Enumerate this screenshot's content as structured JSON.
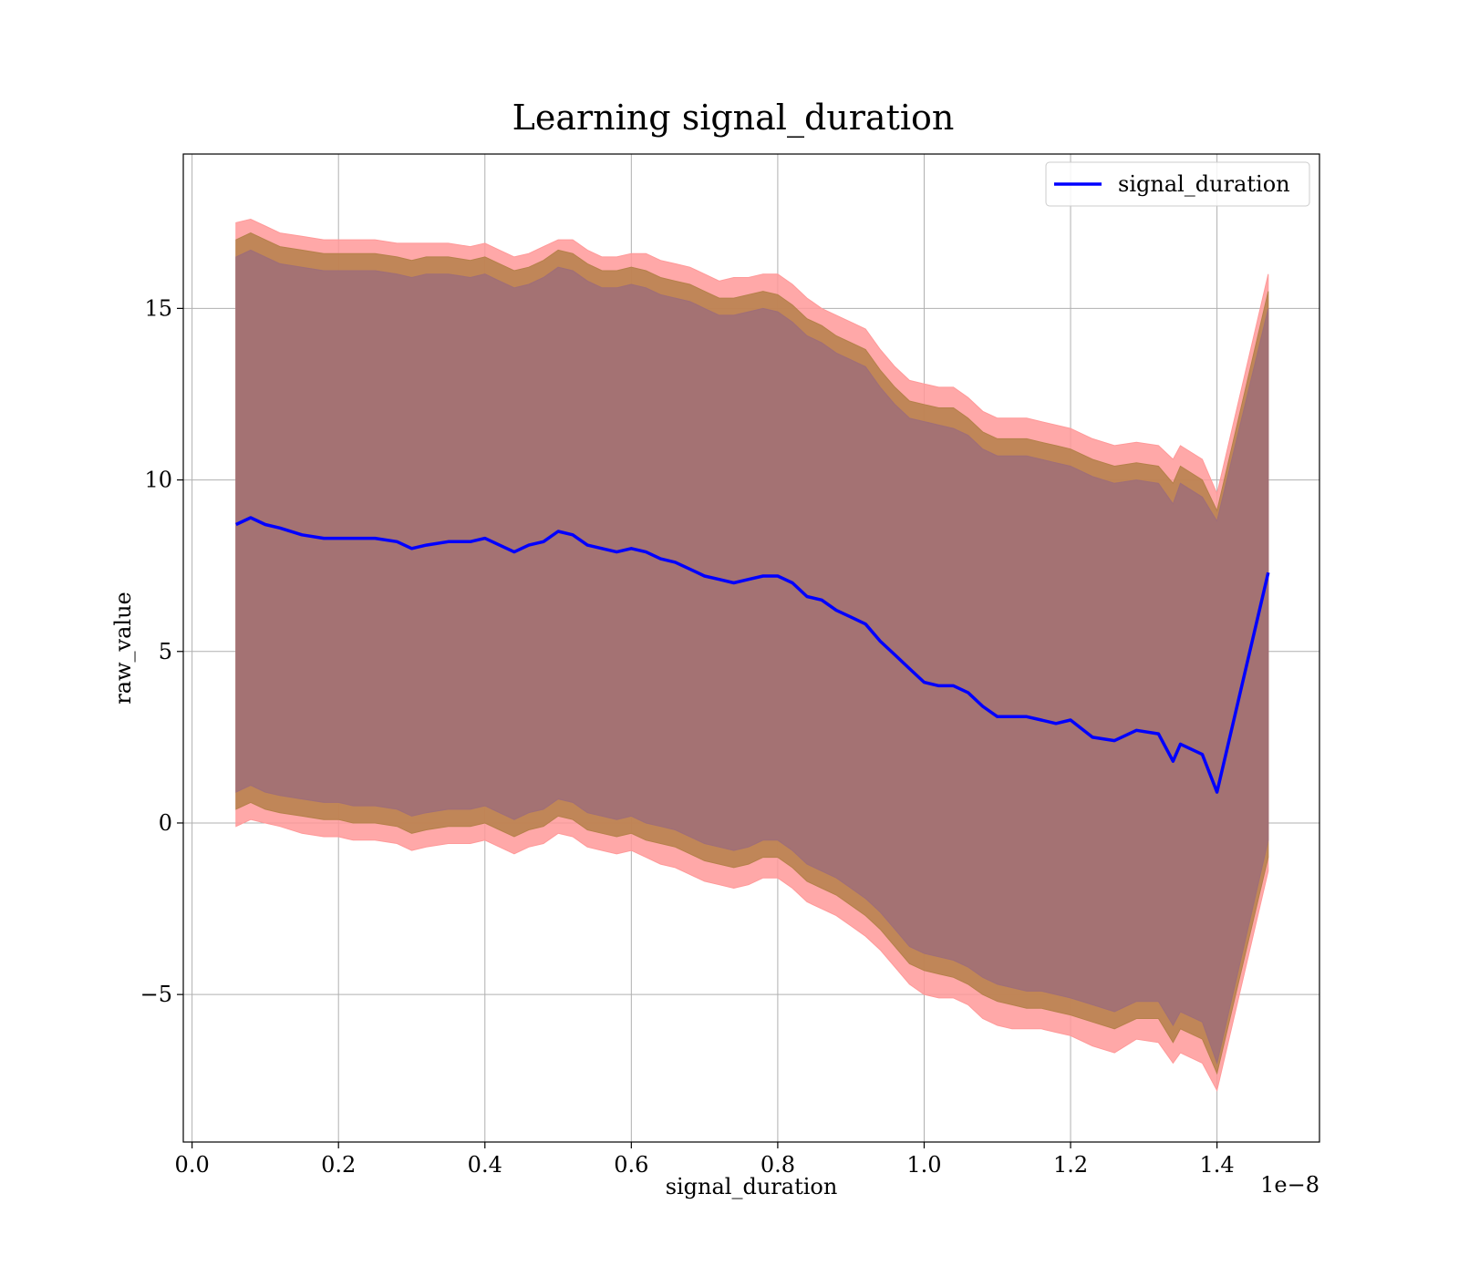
{
  "chart_data": {
    "type": "area",
    "title": "Learning signal_duration",
    "xlabel": "signal_duration",
    "ylabel": "raw_value",
    "x_offset_label": "1e−8",
    "xlim": [
      -0.012,
      1.54
    ],
    "ylim": [
      -9.3,
      19.5
    ],
    "x_ticks": [
      0.0,
      0.2,
      0.4,
      0.6,
      0.8,
      1.0,
      1.2,
      1.4
    ],
    "x_tick_labels": [
      "0.0",
      "0.2",
      "0.4",
      "0.6",
      "0.8",
      "1.0",
      "1.2",
      "1.4"
    ],
    "y_ticks": [
      -5,
      0,
      5,
      10,
      15
    ],
    "y_tick_labels": [
      "−5",
      "0",
      "5",
      "10",
      "15"
    ],
    "grid": true,
    "legend_position": "top-right",
    "series": [
      {
        "name": "signal_duration",
        "color": "#0000ff",
        "x": [
          0.06,
          0.08,
          0.1,
          0.12,
          0.15,
          0.18,
          0.2,
          0.22,
          0.25,
          0.28,
          0.3,
          0.32,
          0.35,
          0.38,
          0.4,
          0.42,
          0.44,
          0.46,
          0.48,
          0.5,
          0.52,
          0.54,
          0.56,
          0.58,
          0.6,
          0.62,
          0.64,
          0.66,
          0.68,
          0.7,
          0.72,
          0.74,
          0.76,
          0.78,
          0.8,
          0.82,
          0.84,
          0.86,
          0.88,
          0.9,
          0.92,
          0.94,
          0.96,
          0.98,
          1.0,
          1.02,
          1.04,
          1.06,
          1.08,
          1.1,
          1.12,
          1.14,
          1.16,
          1.18,
          1.2,
          1.23,
          1.26,
          1.29,
          1.32,
          1.34,
          1.35,
          1.38,
          1.4,
          1.47
        ],
        "values": [
          8.7,
          8.9,
          8.7,
          8.6,
          8.4,
          8.3,
          8.3,
          8.3,
          8.3,
          8.2,
          8.0,
          8.1,
          8.2,
          8.2,
          8.3,
          8.1,
          7.9,
          8.1,
          8.2,
          8.5,
          8.4,
          8.1,
          8.0,
          7.9,
          8.0,
          7.9,
          7.7,
          7.6,
          7.4,
          7.2,
          7.1,
          7.0,
          7.1,
          7.2,
          7.2,
          7.0,
          6.6,
          6.5,
          6.2,
          6.0,
          5.8,
          5.3,
          4.9,
          4.5,
          4.1,
          4.0,
          4.0,
          3.8,
          3.4,
          3.1,
          3.1,
          3.1,
          3.0,
          2.9,
          3.0,
          2.5,
          2.4,
          2.7,
          2.6,
          1.8,
          2.3,
          2.0,
          0.9,
          7.3
        ]
      }
    ],
    "bands": [
      {
        "name": "outer",
        "color": "#ff9999",
        "upper": [
          17.5,
          17.6,
          17.4,
          17.2,
          17.1,
          17.0,
          17.0,
          17.0,
          17.0,
          16.9,
          16.9,
          16.9,
          16.9,
          16.8,
          16.9,
          16.7,
          16.5,
          16.6,
          16.8,
          17.0,
          17.0,
          16.7,
          16.5,
          16.5,
          16.6,
          16.6,
          16.4,
          16.3,
          16.2,
          16.0,
          15.8,
          15.9,
          15.9,
          16.0,
          16.0,
          15.7,
          15.3,
          15.0,
          14.8,
          14.6,
          14.4,
          13.8,
          13.3,
          12.9,
          12.8,
          12.7,
          12.7,
          12.4,
          12.0,
          11.8,
          11.8,
          11.8,
          11.7,
          11.6,
          11.5,
          11.2,
          11.0,
          11.1,
          11.0,
          10.6,
          11.0,
          10.6,
          9.6,
          16.0
        ],
        "lower": [
          -0.1,
          0.1,
          0.0,
          -0.1,
          -0.3,
          -0.4,
          -0.4,
          -0.5,
          -0.5,
          -0.6,
          -0.8,
          -0.7,
          -0.6,
          -0.6,
          -0.5,
          -0.7,
          -0.9,
          -0.7,
          -0.6,
          -0.3,
          -0.4,
          -0.7,
          -0.8,
          -0.9,
          -0.8,
          -1.0,
          -1.2,
          -1.3,
          -1.5,
          -1.7,
          -1.8,
          -1.9,
          -1.8,
          -1.6,
          -1.6,
          -1.9,
          -2.3,
          -2.5,
          -2.7,
          -3.0,
          -3.3,
          -3.7,
          -4.2,
          -4.7,
          -5.0,
          -5.1,
          -5.1,
          -5.3,
          -5.7,
          -5.9,
          -6.0,
          -6.0,
          -6.0,
          -6.1,
          -6.2,
          -6.5,
          -6.7,
          -6.3,
          -6.4,
          -7.0,
          -6.7,
          -7.0,
          -7.8,
          -1.4
        ]
      },
      {
        "name": "middle",
        "color": "#b5804a",
        "upper": [
          17.0,
          17.2,
          17.0,
          16.8,
          16.7,
          16.6,
          16.6,
          16.6,
          16.6,
          16.5,
          16.4,
          16.5,
          16.5,
          16.4,
          16.5,
          16.3,
          16.1,
          16.2,
          16.4,
          16.7,
          16.6,
          16.3,
          16.1,
          16.1,
          16.2,
          16.1,
          15.9,
          15.8,
          15.7,
          15.5,
          15.3,
          15.3,
          15.4,
          15.5,
          15.4,
          15.1,
          14.7,
          14.5,
          14.2,
          14.0,
          13.8,
          13.2,
          12.7,
          12.3,
          12.2,
          12.1,
          12.1,
          11.8,
          11.4,
          11.2,
          11.2,
          11.2,
          11.1,
          11.0,
          10.9,
          10.6,
          10.4,
          10.5,
          10.4,
          9.9,
          10.4,
          10.0,
          9.1,
          15.5
        ],
        "lower": [
          0.4,
          0.6,
          0.4,
          0.3,
          0.2,
          0.1,
          0.1,
          0.0,
          0.0,
          -0.1,
          -0.3,
          -0.2,
          -0.1,
          -0.1,
          0.0,
          -0.2,
          -0.4,
          -0.2,
          -0.1,
          0.2,
          0.1,
          -0.2,
          -0.3,
          -0.4,
          -0.3,
          -0.5,
          -0.6,
          -0.7,
          -0.9,
          -1.1,
          -1.2,
          -1.3,
          -1.2,
          -1.0,
          -1.0,
          -1.3,
          -1.7,
          -1.9,
          -2.1,
          -2.4,
          -2.7,
          -3.1,
          -3.6,
          -4.1,
          -4.3,
          -4.4,
          -4.5,
          -4.7,
          -5.0,
          -5.2,
          -5.3,
          -5.4,
          -5.4,
          -5.5,
          -5.6,
          -5.8,
          -6.0,
          -5.7,
          -5.7,
          -6.4,
          -6.0,
          -6.3,
          -7.3,
          -1.0
        ]
      },
      {
        "name": "inner",
        "color": "#9f6e78",
        "upper": [
          16.5,
          16.7,
          16.5,
          16.3,
          16.2,
          16.1,
          16.1,
          16.1,
          16.1,
          16.0,
          15.9,
          16.0,
          16.0,
          15.9,
          16.0,
          15.8,
          15.6,
          15.7,
          15.9,
          16.2,
          16.1,
          15.8,
          15.6,
          15.6,
          15.7,
          15.6,
          15.4,
          15.3,
          15.2,
          15.0,
          14.8,
          14.8,
          14.9,
          15.0,
          14.9,
          14.6,
          14.2,
          14.0,
          13.7,
          13.5,
          13.3,
          12.7,
          12.2,
          11.8,
          11.7,
          11.6,
          11.5,
          11.3,
          10.9,
          10.7,
          10.7,
          10.7,
          10.6,
          10.5,
          10.4,
          10.1,
          9.9,
          10.0,
          9.9,
          9.3,
          9.9,
          9.5,
          8.8,
          15.0
        ],
        "lower": [
          0.9,
          1.1,
          0.9,
          0.8,
          0.7,
          0.6,
          0.6,
          0.5,
          0.5,
          0.4,
          0.2,
          0.3,
          0.4,
          0.4,
          0.5,
          0.3,
          0.1,
          0.3,
          0.4,
          0.7,
          0.6,
          0.3,
          0.2,
          0.1,
          0.2,
          0.0,
          -0.1,
          -0.2,
          -0.4,
          -0.6,
          -0.7,
          -0.8,
          -0.7,
          -0.5,
          -0.5,
          -0.8,
          -1.2,
          -1.4,
          -1.6,
          -1.9,
          -2.2,
          -2.6,
          -3.1,
          -3.6,
          -3.8,
          -3.9,
          -4.0,
          -4.2,
          -4.5,
          -4.7,
          -4.8,
          -4.9,
          -4.9,
          -5.0,
          -5.1,
          -5.3,
          -5.5,
          -5.2,
          -5.2,
          -5.9,
          -5.5,
          -5.8,
          -7.0,
          -0.5
        ]
      }
    ]
  }
}
